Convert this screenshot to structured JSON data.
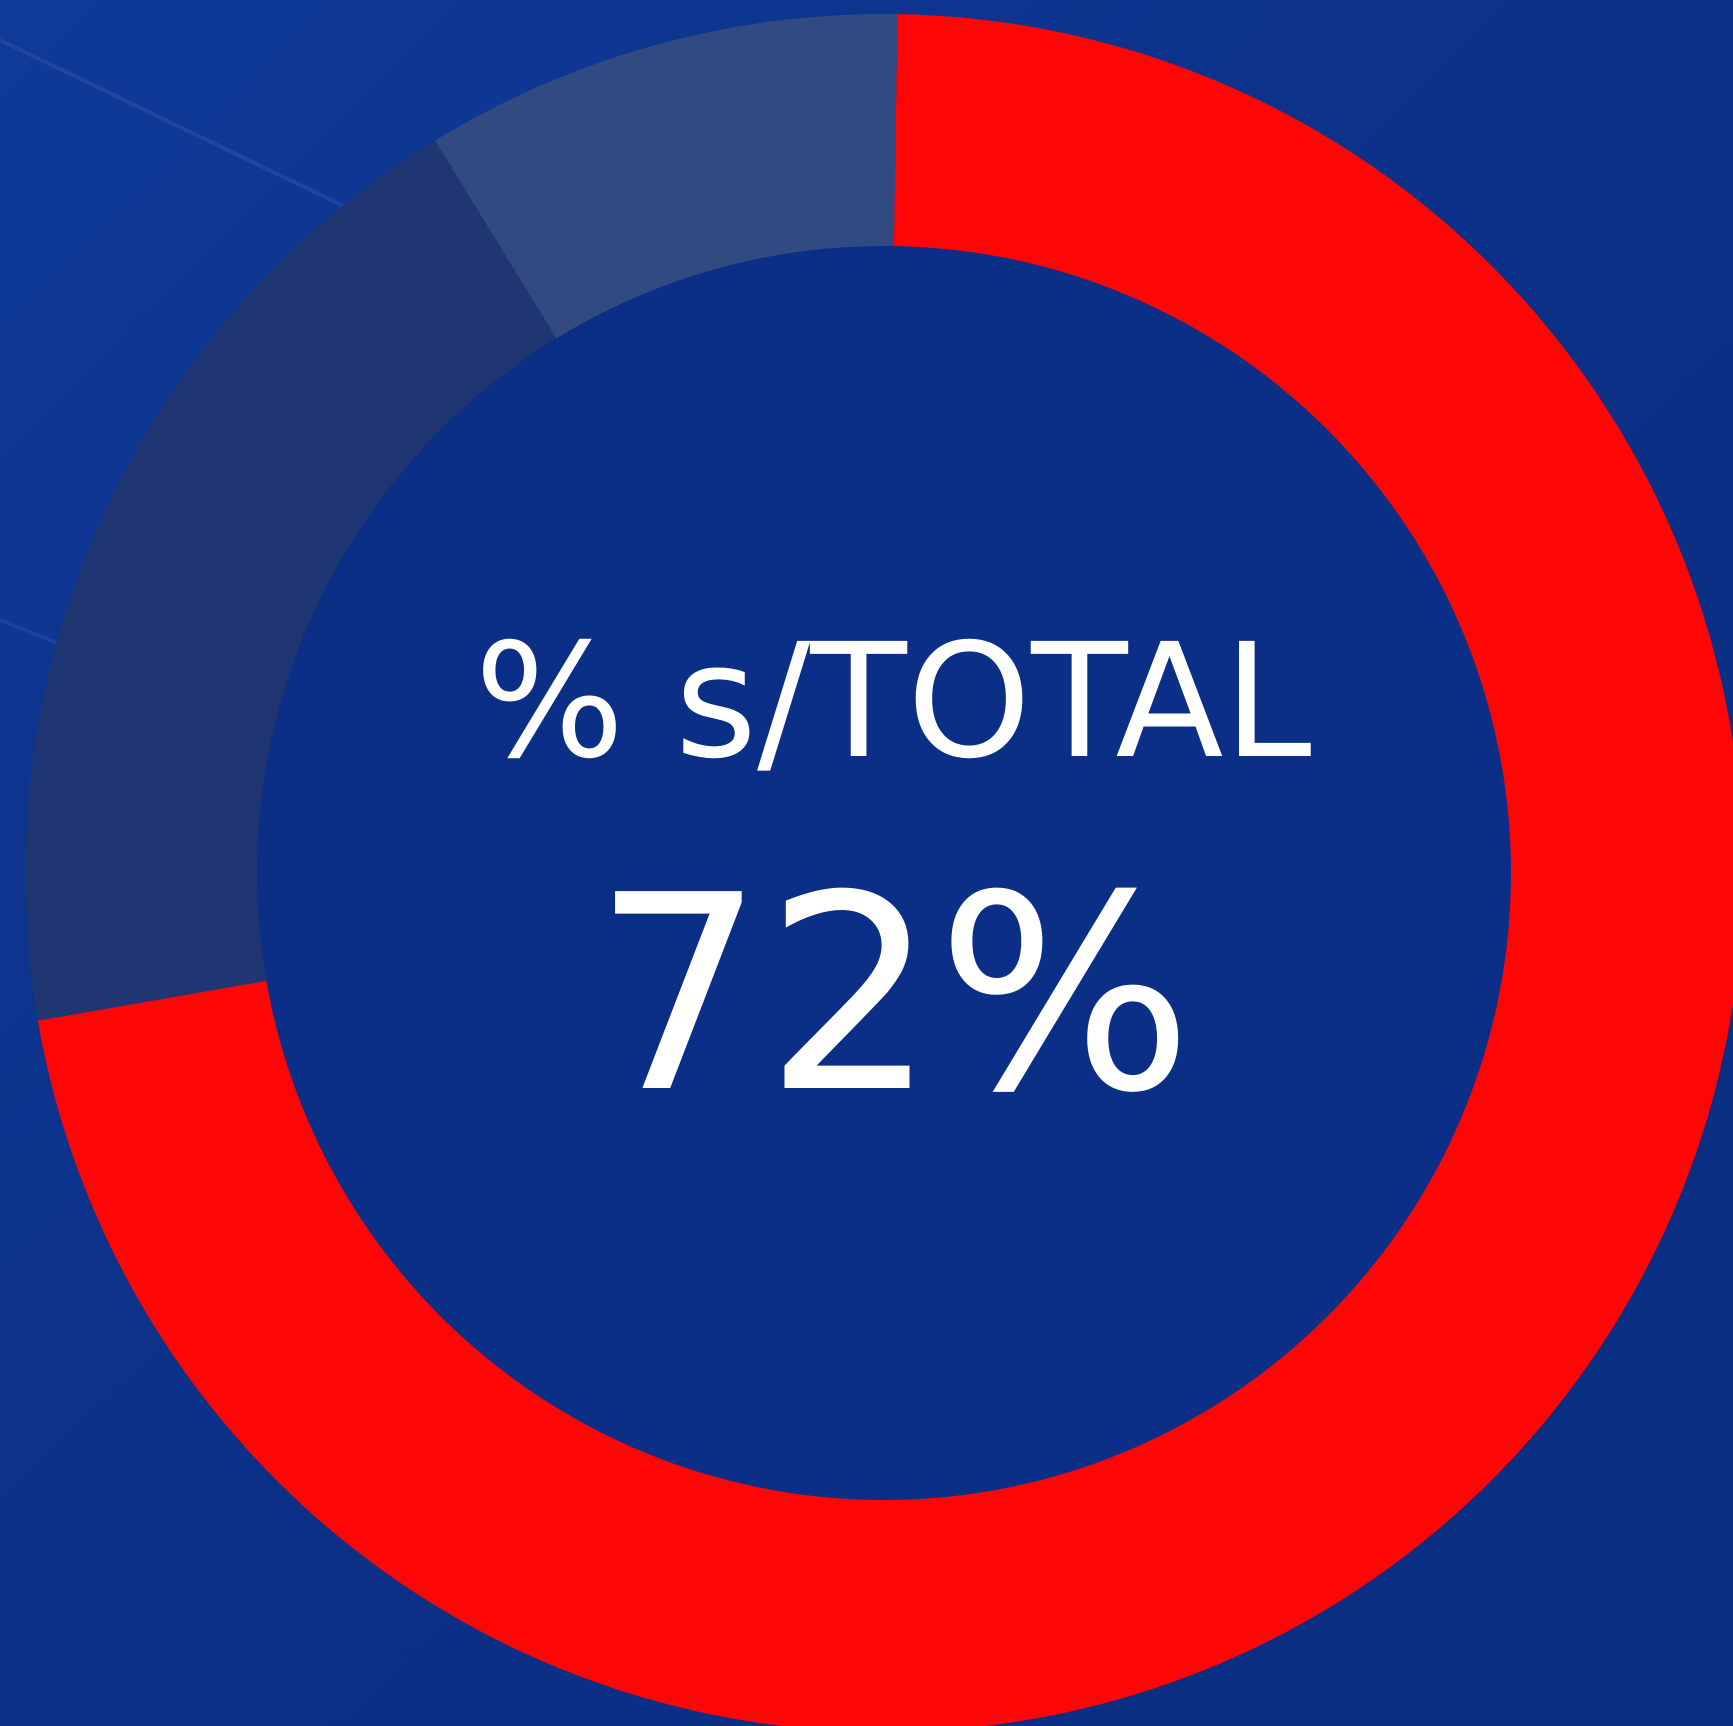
{
  "chart_data": {
    "type": "pie",
    "title": "% s/TOTAL",
    "values": [
      72,
      19,
      9
    ],
    "value_labels": [
      "72%",
      null,
      null
    ],
    "colors": [
      "#ff0606",
      "#1f3672",
      "#314a82"
    ]
  }
}
